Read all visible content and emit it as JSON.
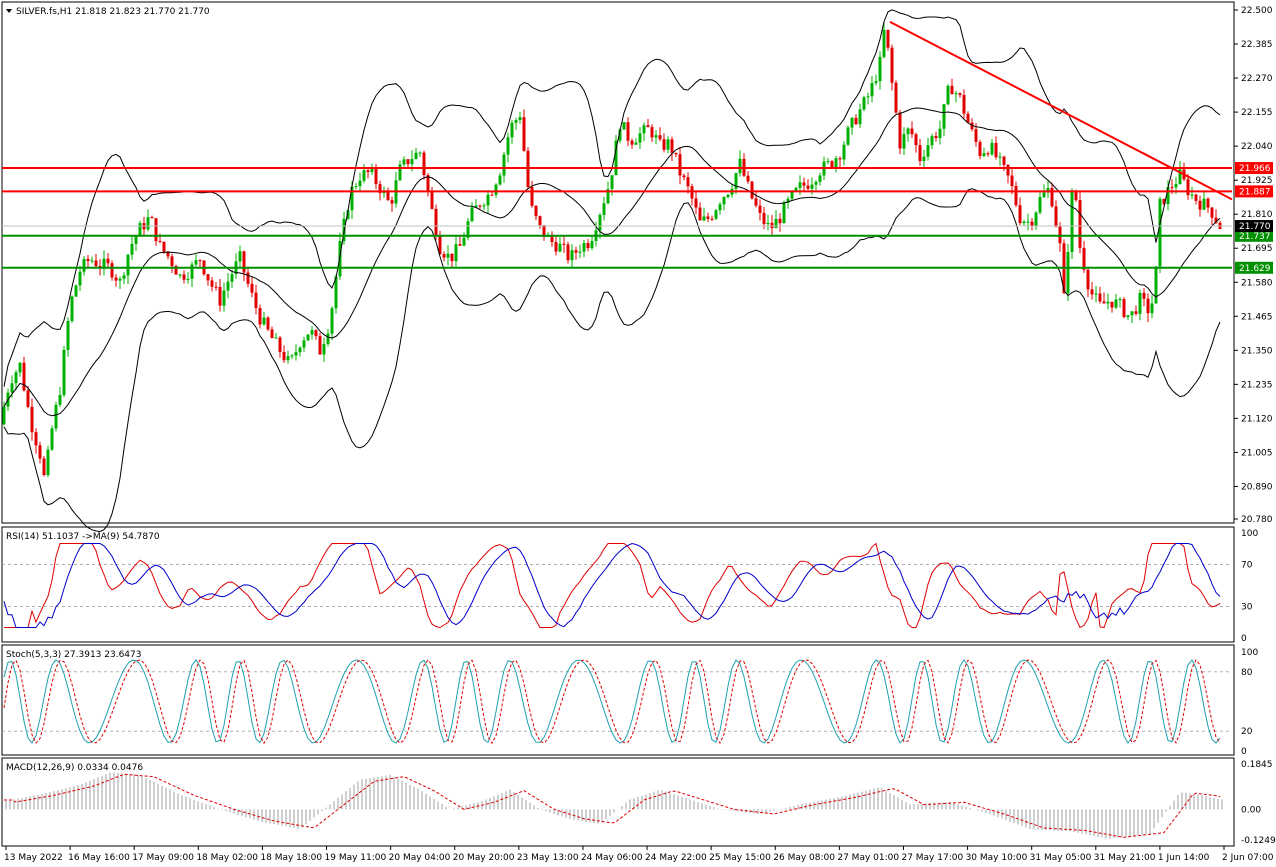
{
  "window": {
    "symbol_line": "SILVER.fs,H1  21.818 21.823 21.770 21.770"
  },
  "colors": {
    "bull": "#00b000",
    "bear": "#e00000",
    "resistance": "#ff0000",
    "support": "#009000",
    "bands": "#000000",
    "rsi_line": "#e00000",
    "rsi_ma": "#0000cc",
    "stoch_main": "#20a0b0",
    "stoch_signal": "#e00000",
    "macd_hist": "#a0a0a0",
    "macd_signal": "#e00000",
    "price_tag": "#000000"
  },
  "chart_data": {
    "type": "candlestick",
    "symbol": "SILVER.fs",
    "timeframe": "H1",
    "ohlc_header": {
      "open": 21.818,
      "high": 21.823,
      "low": 21.77,
      "close": 21.77
    },
    "current_price": "21.770",
    "price_ticks": [
      "22.500",
      "22.385",
      "22.270",
      "22.155",
      "22.040",
      "21.925",
      "21.810",
      "21.695",
      "21.580",
      "21.465",
      "21.350",
      "21.235",
      "21.120",
      "21.005",
      "20.890",
      "20.780"
    ],
    "price_range": [
      20.78,
      22.5
    ],
    "time_labels": [
      "13 May 2022",
      "16 May 16:00",
      "17 May 09:00",
      "18 May 02:00",
      "18 May 18:00",
      "19 May 11:00",
      "20 May 04:00",
      "20 May 20:00",
      "23 May 13:00",
      "24 May 06:00",
      "24 May 22:00",
      "25 May 15:00",
      "26 May 08:00",
      "27 May 01:00",
      "27 May 17:00",
      "30 May 10:00",
      "31 May 05:00",
      "31 May 21:00",
      "1 Jun 14:00",
      "2 Jun 07:00"
    ],
    "price_path": [
      [
        0,
        21.1
      ],
      [
        10,
        21.25
      ],
      [
        20,
        21.3
      ],
      [
        30,
        21.12
      ],
      [
        40,
        21.0
      ],
      [
        45,
        20.9
      ],
      [
        50,
        21.05
      ],
      [
        60,
        21.22
      ],
      [
        70,
        21.5
      ],
      [
        80,
        21.62
      ],
      [
        90,
        21.66
      ],
      [
        100,
        21.64
      ],
      [
        110,
        21.63
      ],
      [
        120,
        21.58
      ],
      [
        130,
        21.7
      ],
      [
        140,
        21.76
      ],
      [
        150,
        21.8
      ],
      [
        160,
        21.7
      ],
      [
        170,
        21.66
      ],
      [
        180,
        21.6
      ],
      [
        190,
        21.62
      ],
      [
        200,
        21.66
      ],
      [
        210,
        21.58
      ],
      [
        220,
        21.52
      ],
      [
        230,
        21.6
      ],
      [
        240,
        21.66
      ],
      [
        250,
        21.55
      ],
      [
        260,
        21.46
      ],
      [
        270,
        21.4
      ],
      [
        280,
        21.35
      ],
      [
        290,
        21.3
      ],
      [
        300,
        21.38
      ],
      [
        310,
        21.42
      ],
      [
        320,
        21.35
      ],
      [
        330,
        21.45
      ],
      [
        340,
        21.7
      ],
      [
        350,
        21.88
      ],
      [
        360,
        21.94
      ],
      [
        370,
        21.95
      ],
      [
        380,
        21.9
      ],
      [
        390,
        21.84
      ],
      [
        400,
        21.96
      ],
      [
        410,
        22.0
      ],
      [
        420,
        22.02
      ],
      [
        430,
        21.85
      ],
      [
        440,
        21.7
      ],
      [
        450,
        21.66
      ],
      [
        460,
        21.7
      ],
      [
        470,
        21.8
      ],
      [
        480,
        21.85
      ],
      [
        490,
        21.88
      ],
      [
        500,
        21.96
      ],
      [
        510,
        22.1
      ],
      [
        520,
        22.15
      ],
      [
        530,
        21.84
      ],
      [
        540,
        21.76
      ],
      [
        550,
        21.72
      ],
      [
        560,
        21.7
      ],
      [
        570,
        21.66
      ],
      [
        580,
        21.7
      ],
      [
        590,
        21.72
      ],
      [
        600,
        21.82
      ],
      [
        610,
        21.92
      ],
      [
        620,
        22.12
      ],
      [
        630,
        22.06
      ],
      [
        640,
        22.08
      ],
      [
        650,
        22.1
      ],
      [
        660,
        22.04
      ],
      [
        670,
        22.05
      ],
      [
        680,
        21.95
      ],
      [
        690,
        21.88
      ],
      [
        700,
        21.78
      ],
      [
        710,
        21.8
      ],
      [
        720,
        21.86
      ],
      [
        730,
        21.9
      ],
      [
        740,
        21.98
      ],
      [
        750,
        21.88
      ],
      [
        760,
        21.8
      ],
      [
        770,
        21.76
      ],
      [
        780,
        21.8
      ],
      [
        790,
        21.86
      ],
      [
        800,
        21.9
      ],
      [
        810,
        21.92
      ],
      [
        820,
        21.96
      ],
      [
        830,
        21.98
      ],
      [
        840,
        22.02
      ],
      [
        850,
        22.1
      ],
      [
        860,
        22.16
      ],
      [
        870,
        22.22
      ],
      [
        880,
        22.32
      ],
      [
        885,
        22.45
      ],
      [
        890,
        22.3
      ],
      [
        900,
        22.05
      ],
      [
        910,
        22.1
      ],
      [
        920,
        22.0
      ],
      [
        930,
        22.06
      ],
      [
        940,
        22.1
      ],
      [
        950,
        22.25
      ],
      [
        960,
        22.2
      ],
      [
        970,
        22.1
      ],
      [
        980,
        22.02
      ],
      [
        990,
        22.04
      ],
      [
        1000,
        21.98
      ],
      [
        1010,
        21.92
      ],
      [
        1020,
        21.8
      ],
      [
        1030,
        21.78
      ],
      [
        1040,
        21.86
      ],
      [
        1050,
        21.9
      ],
      [
        1060,
        21.7
      ],
      [
        1065,
        21.48
      ],
      [
        1070,
        21.85
      ],
      [
        1075,
        21.9
      ],
      [
        1080,
        21.7
      ],
      [
        1090,
        21.55
      ],
      [
        1100,
        21.5
      ],
      [
        1110,
        21.52
      ],
      [
        1120,
        21.5
      ],
      [
        1130,
        21.46
      ],
      [
        1140,
        21.52
      ],
      [
        1150,
        21.48
      ],
      [
        1155,
        21.56
      ],
      [
        1160,
        21.84
      ],
      [
        1170,
        21.9
      ],
      [
        1180,
        21.94
      ],
      [
        1190,
        21.88
      ],
      [
        1200,
        21.85
      ],
      [
        1210,
        21.83
      ],
      [
        1220,
        21.77
      ]
    ],
    "levels": [
      {
        "value": 21.966,
        "label": "21.966",
        "kind": "resistance"
      },
      {
        "value": 21.887,
        "label": "21.887",
        "kind": "resistance"
      },
      {
        "value": 21.737,
        "label": "21.737",
        "kind": "support"
      },
      {
        "value": 21.629,
        "label": "21.629",
        "kind": "support"
      }
    ],
    "trendline": {
      "from": {
        "t": 890,
        "price": 22.46
      },
      "to": {
        "t": 1232,
        "price": 21.86
      }
    },
    "bands_width": 0.17,
    "rsi": {
      "label": "RSI(14) 51.1037  ->MA(9) 54.7870",
      "ticks": [
        "100",
        "70",
        "30",
        "0"
      ],
      "levels": [
        70,
        30
      ],
      "range": [
        0,
        100
      ]
    },
    "stoch": {
      "label": "Stoch(5,3,3) 27.3913 23.6473",
      "ticks": [
        "100",
        "80",
        "20",
        "0"
      ],
      "levels": [
        80,
        20
      ],
      "range": [
        0,
        100
      ]
    },
    "macd": {
      "label": "MACD(12,26,9) 0.0334 0.0476",
      "ticks": [
        "0.1845",
        "0.00",
        "-0.1249"
      ],
      "range": [
        -0.1249,
        0.1845
      ],
      "hist_path": [
        [
          0,
          0.03
        ],
        [
          40,
          0.06
        ],
        [
          80,
          0.1
        ],
        [
          110,
          0.15
        ],
        [
          140,
          0.14
        ],
        [
          180,
          0.06
        ],
        [
          220,
          0.0
        ],
        [
          260,
          -0.05
        ],
        [
          300,
          -0.08
        ],
        [
          330,
          0.02
        ],
        [
          360,
          0.12
        ],
        [
          390,
          0.14
        ],
        [
          420,
          0.08
        ],
        [
          450,
          0.0
        ],
        [
          480,
          0.03
        ],
        [
          510,
          0.08
        ],
        [
          540,
          0.0
        ],
        [
          570,
          -0.04
        ],
        [
          600,
          -0.06
        ],
        [
          630,
          0.04
        ],
        [
          660,
          0.08
        ],
        [
          690,
          0.04
        ],
        [
          720,
          0.0
        ],
        [
          760,
          -0.02
        ],
        [
          800,
          0.02
        ],
        [
          840,
          0.05
        ],
        [
          880,
          0.09
        ],
        [
          910,
          0.02
        ],
        [
          950,
          0.03
        ],
        [
          990,
          -0.02
        ],
        [
          1030,
          -0.08
        ],
        [
          1070,
          -0.09
        ],
        [
          1110,
          -0.12
        ],
        [
          1150,
          -0.1
        ],
        [
          1180,
          0.07
        ],
        [
          1200,
          0.06
        ],
        [
          1220,
          0.04
        ]
      ]
    }
  }
}
